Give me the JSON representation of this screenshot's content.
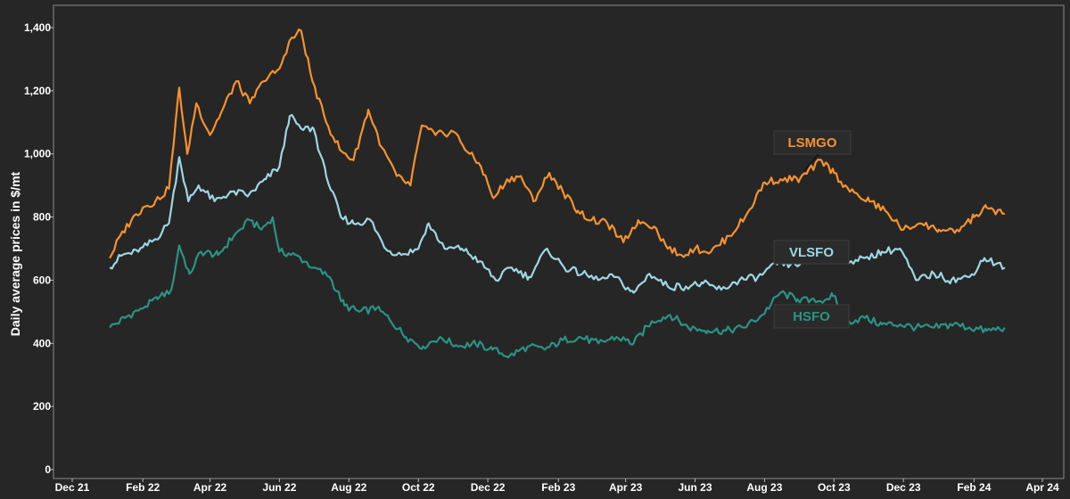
{
  "chart_data": {
    "type": "line",
    "title": "",
    "xlabel": "",
    "ylabel": "Daily average prices in $/mt",
    "ylim": [
      0,
      1400
    ],
    "yticks": [
      "0",
      "200",
      "400",
      "600",
      "800",
      "1,000",
      "1,200",
      "1,400"
    ],
    "x_start": "2021-12-01",
    "x_end": "2024-04-01",
    "xticks": [
      {
        "label": "Dec 21",
        "date": "2021-12-01"
      },
      {
        "label": "Feb 22",
        "date": "2022-02-01"
      },
      {
        "label": "Apr 22",
        "date": "2022-04-01"
      },
      {
        "label": "Jun 22",
        "date": "2022-06-01"
      },
      {
        "label": "Aug 22",
        "date": "2022-08-01"
      },
      {
        "label": "Oct 22",
        "date": "2022-10-01"
      },
      {
        "label": "Dec 22",
        "date": "2022-12-01"
      },
      {
        "label": "Feb 23",
        "date": "2023-02-01"
      },
      {
        "label": "Apr 23",
        "date": "2023-04-01"
      },
      {
        "label": "Jun 23",
        "date": "2023-06-01"
      },
      {
        "label": "Aug 23",
        "date": "2023-08-01"
      },
      {
        "label": "Oct 23",
        "date": "2023-10-01"
      },
      {
        "label": "Dec 23",
        "date": "2023-12-01"
      },
      {
        "label": "Feb 24",
        "date": "2024-02-01"
      },
      {
        "label": "Apr 24",
        "date": "2024-04-01"
      }
    ],
    "grid": false,
    "legend": "inline labels",
    "series": [
      {
        "name": "LSMGO",
        "color": "#f5922f",
        "points": [
          [
            "2022-01-03",
            670
          ],
          [
            "2022-01-12",
            740
          ],
          [
            "2022-01-22",
            790
          ],
          [
            "2022-02-01",
            830
          ],
          [
            "2022-02-12",
            850
          ],
          [
            "2022-02-24",
            890
          ],
          [
            "2022-03-05",
            1210
          ],
          [
            "2022-03-12",
            1000
          ],
          [
            "2022-03-20",
            1160
          ],
          [
            "2022-04-01",
            1060
          ],
          [
            "2022-04-12",
            1140
          ],
          [
            "2022-04-24",
            1230
          ],
          [
            "2022-05-06",
            1160
          ],
          [
            "2022-05-18",
            1230
          ],
          [
            "2022-06-01",
            1270
          ],
          [
            "2022-06-10",
            1360
          ],
          [
            "2022-06-20",
            1390
          ],
          [
            "2022-06-30",
            1230
          ],
          [
            "2022-07-12",
            1100
          ],
          [
            "2022-07-25",
            1010
          ],
          [
            "2022-08-05",
            980
          ],
          [
            "2022-08-18",
            1140
          ],
          [
            "2022-08-30",
            1020
          ],
          [
            "2022-09-12",
            930
          ],
          [
            "2022-09-24",
            900
          ],
          [
            "2022-10-04",
            1090
          ],
          [
            "2022-10-16",
            1060
          ],
          [
            "2022-11-01",
            1070
          ],
          [
            "2022-11-15",
            1000
          ],
          [
            "2022-11-25",
            960
          ],
          [
            "2022-12-06",
            860
          ],
          [
            "2022-12-18",
            920
          ],
          [
            "2022-12-30",
            930
          ],
          [
            "2023-01-10",
            850
          ],
          [
            "2023-01-24",
            940
          ],
          [
            "2023-02-05",
            880
          ],
          [
            "2023-02-18",
            820
          ],
          [
            "2023-03-02",
            790
          ],
          [
            "2023-03-16",
            780
          ],
          [
            "2023-03-30",
            720
          ],
          [
            "2023-04-12",
            790
          ],
          [
            "2023-04-26",
            770
          ],
          [
            "2023-05-08",
            700
          ],
          [
            "2023-05-20",
            680
          ],
          [
            "2023-06-01",
            700
          ],
          [
            "2023-06-15",
            690
          ],
          [
            "2023-07-01",
            740
          ],
          [
            "2023-07-15",
            800
          ],
          [
            "2023-08-01",
            910
          ],
          [
            "2023-08-15",
            920
          ],
          [
            "2023-09-01",
            920
          ],
          [
            "2023-09-20",
            980
          ],
          [
            "2023-10-01",
            940
          ],
          [
            "2023-10-15",
            880
          ],
          [
            "2023-11-01",
            850
          ],
          [
            "2023-11-15",
            820
          ],
          [
            "2023-12-01",
            760
          ],
          [
            "2023-12-15",
            780
          ],
          [
            "2024-01-01",
            760
          ],
          [
            "2024-01-15",
            750
          ],
          [
            "2024-02-01",
            800
          ],
          [
            "2024-02-12",
            830
          ],
          [
            "2024-02-28",
            810
          ]
        ]
      },
      {
        "name": "VLSFO",
        "color": "#9fd6e3",
        "points": [
          [
            "2022-01-03",
            640
          ],
          [
            "2022-01-14",
            680
          ],
          [
            "2022-01-28",
            690
          ],
          [
            "2022-02-12",
            730
          ],
          [
            "2022-02-24",
            780
          ],
          [
            "2022-03-05",
            990
          ],
          [
            "2022-03-13",
            850
          ],
          [
            "2022-03-22",
            900
          ],
          [
            "2022-04-05",
            850
          ],
          [
            "2022-04-20",
            880
          ],
          [
            "2022-05-05",
            870
          ],
          [
            "2022-05-20",
            920
          ],
          [
            "2022-06-01",
            960
          ],
          [
            "2022-06-10",
            1120
          ],
          [
            "2022-06-20",
            1080
          ],
          [
            "2022-07-01",
            1080
          ],
          [
            "2022-07-12",
            930
          ],
          [
            "2022-07-25",
            800
          ],
          [
            "2022-08-05",
            780
          ],
          [
            "2022-08-20",
            790
          ],
          [
            "2022-09-02",
            700
          ],
          [
            "2022-09-16",
            680
          ],
          [
            "2022-10-01",
            700
          ],
          [
            "2022-10-10",
            780
          ],
          [
            "2022-10-24",
            700
          ],
          [
            "2022-11-08",
            700
          ],
          [
            "2022-11-24",
            660
          ],
          [
            "2022-12-08",
            600
          ],
          [
            "2022-12-22",
            640
          ],
          [
            "2023-01-06",
            610
          ],
          [
            "2023-01-22",
            700
          ],
          [
            "2023-02-06",
            640
          ],
          [
            "2023-02-22",
            620
          ],
          [
            "2023-03-08",
            600
          ],
          [
            "2023-03-22",
            610
          ],
          [
            "2023-04-08",
            560
          ],
          [
            "2023-04-22",
            620
          ],
          [
            "2023-05-08",
            580
          ],
          [
            "2023-05-24",
            580
          ],
          [
            "2023-06-08",
            590
          ],
          [
            "2023-06-24",
            570
          ],
          [
            "2023-07-10",
            600
          ],
          [
            "2023-07-26",
            610
          ],
          [
            "2023-08-12",
            650
          ],
          [
            "2023-08-28",
            650
          ],
          [
            "2023-09-12",
            670
          ],
          [
            "2023-09-28",
            690
          ],
          [
            "2023-10-12",
            660
          ],
          [
            "2023-10-28",
            670
          ],
          [
            "2023-11-12",
            690
          ],
          [
            "2023-11-28",
            700
          ],
          [
            "2023-12-12",
            600
          ],
          [
            "2023-12-28",
            620
          ],
          [
            "2024-01-12",
            600
          ],
          [
            "2024-01-28",
            610
          ],
          [
            "2024-02-10",
            670
          ],
          [
            "2024-02-28",
            640
          ]
        ]
      },
      {
        "name": "HSFO",
        "color": "#2a9384",
        "points": [
          [
            "2022-01-03",
            450
          ],
          [
            "2022-01-16",
            480
          ],
          [
            "2022-01-30",
            510
          ],
          [
            "2022-02-14",
            540
          ],
          [
            "2022-02-26",
            570
          ],
          [
            "2022-03-05",
            710
          ],
          [
            "2022-03-14",
            620
          ],
          [
            "2022-03-24",
            690
          ],
          [
            "2022-04-08",
            680
          ],
          [
            "2022-04-22",
            740
          ],
          [
            "2022-05-06",
            790
          ],
          [
            "2022-05-16",
            760
          ],
          [
            "2022-05-26",
            800
          ],
          [
            "2022-06-01",
            690
          ],
          [
            "2022-06-15",
            680
          ],
          [
            "2022-07-01",
            640
          ],
          [
            "2022-07-15",
            610
          ],
          [
            "2022-07-28",
            520
          ],
          [
            "2022-08-10",
            500
          ],
          [
            "2022-08-25",
            510
          ],
          [
            "2022-09-05",
            480
          ],
          [
            "2022-09-20",
            420
          ],
          [
            "2022-10-05",
            390
          ],
          [
            "2022-10-20",
            420
          ],
          [
            "2022-11-05",
            390
          ],
          [
            "2022-11-20",
            400
          ],
          [
            "2022-12-05",
            380
          ],
          [
            "2022-12-20",
            360
          ],
          [
            "2023-01-05",
            390
          ],
          [
            "2023-01-20",
            380
          ],
          [
            "2023-02-05",
            410
          ],
          [
            "2023-02-20",
            420
          ],
          [
            "2023-03-08",
            400
          ],
          [
            "2023-03-24",
            420
          ],
          [
            "2023-04-08",
            400
          ],
          [
            "2023-04-24",
            470
          ],
          [
            "2023-05-10",
            490
          ],
          [
            "2023-05-26",
            450
          ],
          [
            "2023-06-12",
            440
          ],
          [
            "2023-06-28",
            440
          ],
          [
            "2023-07-14",
            450
          ],
          [
            "2023-07-30",
            490
          ],
          [
            "2023-08-15",
            560
          ],
          [
            "2023-08-30",
            540
          ],
          [
            "2023-09-15",
            530
          ],
          [
            "2023-09-30",
            550
          ],
          [
            "2023-10-14",
            470
          ],
          [
            "2023-10-28",
            480
          ],
          [
            "2023-11-12",
            460
          ],
          [
            "2023-11-28",
            460
          ],
          [
            "2023-12-12",
            450
          ],
          [
            "2023-12-28",
            450
          ],
          [
            "2024-01-14",
            460
          ],
          [
            "2024-01-28",
            450
          ],
          [
            "2024-02-12",
            440
          ],
          [
            "2024-02-28",
            450
          ]
        ]
      }
    ],
    "annotations": [
      {
        "text": "LSMGO",
        "series": "LSMGO",
        "anchor_date": "2023-09-15",
        "anchor_value": 920,
        "color": "#f5922f"
      },
      {
        "text": "VLSFO",
        "series": "VLSFO",
        "color": "#9fd6e3"
      },
      {
        "text": "HSFO",
        "series": "HSFO",
        "color": "#2a9384"
      }
    ]
  }
}
